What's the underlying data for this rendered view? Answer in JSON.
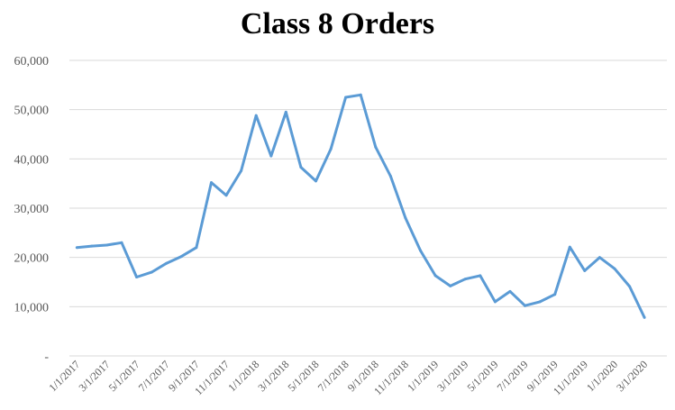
{
  "chart_data": {
    "type": "line",
    "title": "Class 8 Orders",
    "xlabel": "",
    "ylabel": "",
    "ylim": [
      0,
      60000
    ],
    "yticks": [
      0,
      10000,
      20000,
      30000,
      40000,
      50000,
      60000
    ],
    "ytick_labels": [
      "-",
      "10,000",
      "20,000",
      "30,000",
      "40,000",
      "50,000",
      "60,000"
    ],
    "xtick_labels": [
      "1/1/2017",
      "3/1/2017",
      "5/1/2017",
      "7/1/2017",
      "9/1/2017",
      "11/1/2017",
      "1/1/2018",
      "3/1/2018",
      "5/1/2018",
      "7/1/2018",
      "9/1/2018",
      "11/1/2018",
      "1/1/2019",
      "3/1/2019",
      "5/1/2019",
      "7/1/2019",
      "9/1/2019",
      "11/1/2019",
      "1/1/2020",
      "3/1/2020"
    ],
    "grid": "horizontal",
    "series": [
      {
        "color": "#5B9BD5",
        "x": [
          "2017-01",
          "2017-02",
          "2017-03",
          "2017-04",
          "2017-05",
          "2017-06",
          "2017-07",
          "2017-08",
          "2017-09",
          "2017-10",
          "2017-11",
          "2017-12",
          "2018-01",
          "2018-02",
          "2018-03",
          "2018-04",
          "2018-05",
          "2018-06",
          "2018-07",
          "2018-08",
          "2018-09",
          "2018-10",
          "2018-11",
          "2018-12",
          "2019-01",
          "2019-02",
          "2019-03",
          "2019-04",
          "2019-05",
          "2019-06",
          "2019-07",
          "2019-08",
          "2019-09",
          "2019-10",
          "2019-11",
          "2019-12",
          "2020-01",
          "2020-02",
          "2020-03",
          "2020-04"
        ],
        "values": [
          22000,
          22300,
          22500,
          23000,
          16000,
          17000,
          18800,
          20200,
          22000,
          35200,
          32600,
          37600,
          48800,
          40600,
          49500,
          38300,
          35500,
          42000,
          52500,
          53000,
          42400,
          36500,
          28000,
          21400,
          16300,
          14200,
          15600,
          16300,
          11000,
          13100,
          10200,
          11000,
          12500,
          22100,
          17300,
          20000,
          17700,
          14100,
          7800,
          null
        ]
      }
    ]
  }
}
